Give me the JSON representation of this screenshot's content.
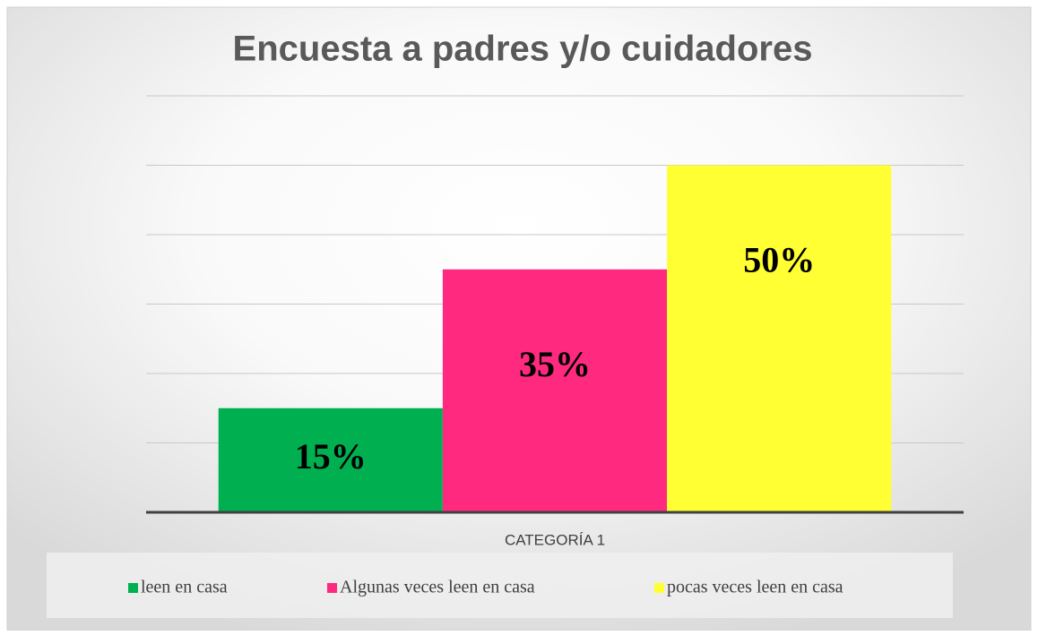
{
  "chart_data": {
    "type": "bar",
    "title": "Encuesta a padres y/o cuidadores",
    "categories": [
      "CATEGORÍA 1"
    ],
    "series": [
      {
        "name": "leen en casa",
        "color": "#00b050",
        "values": [
          15
        ],
        "value_labels": [
          "15%"
        ]
      },
      {
        "name": "Algunas veces leen en casa",
        "color": "#ff2a7f",
        "values": [
          35
        ],
        "value_labels": [
          "35%"
        ]
      },
      {
        "name": "pocas veces leen en casa",
        "color": "#ffff33",
        "values": [
          50
        ],
        "value_labels": [
          "50%"
        ]
      }
    ],
    "ylim": [
      0,
      60
    ],
    "yticks": [
      0,
      10,
      20,
      30,
      40,
      50,
      60
    ],
    "grid": true,
    "legend": "bottom"
  }
}
